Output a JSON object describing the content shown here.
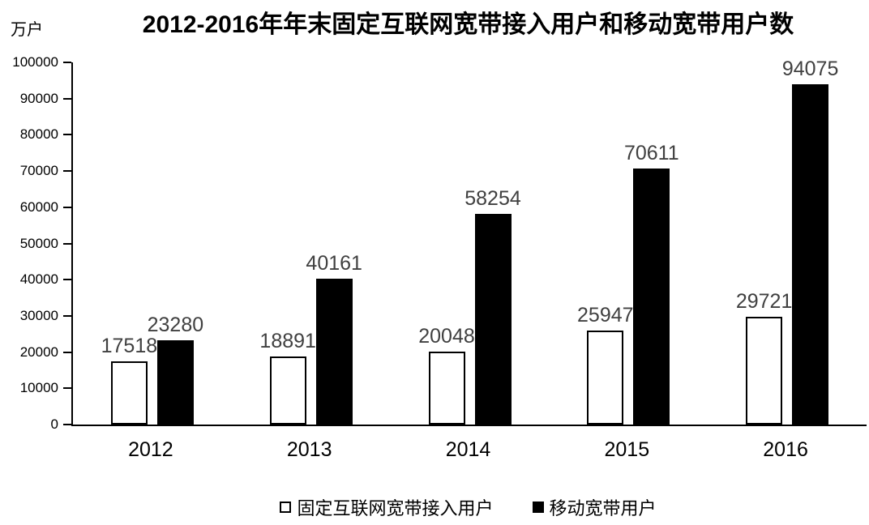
{
  "chart": {
    "title": "2012-2016年年末固定互联网宽带接入用户和移动宽带用户数",
    "unit_label": "万户"
  },
  "chart_data": {
    "type": "bar",
    "title": "2012-2016年年末固定互联网宽带接入用户和移动宽带用户数",
    "unit": "万户",
    "categories": [
      "2012",
      "2013",
      "2014",
      "2015",
      "2016"
    ],
    "series": [
      {
        "name": "固定互联网宽带接入用户",
        "key": "fixed-broadband",
        "values": [
          17518,
          18891,
          20048,
          25947,
          29721
        ],
        "fill": "#ffffff",
        "stroke": "#000000"
      },
      {
        "name": "移动宽带用户",
        "key": "mobile-broadband",
        "values": [
          23280,
          40161,
          58254,
          70611,
          94075
        ],
        "fill": "#000000",
        "stroke": "#000000"
      }
    ],
    "ylim": [
      0,
      100000
    ],
    "ytick_step": 10000,
    "yticks": [
      0,
      10000,
      20000,
      30000,
      40000,
      50000,
      60000,
      70000,
      80000,
      90000,
      100000
    ],
    "grid": false,
    "legend_position": "bottom",
    "data_labels": true,
    "data_label_color": "#404040",
    "axis_color": "#000000"
  }
}
